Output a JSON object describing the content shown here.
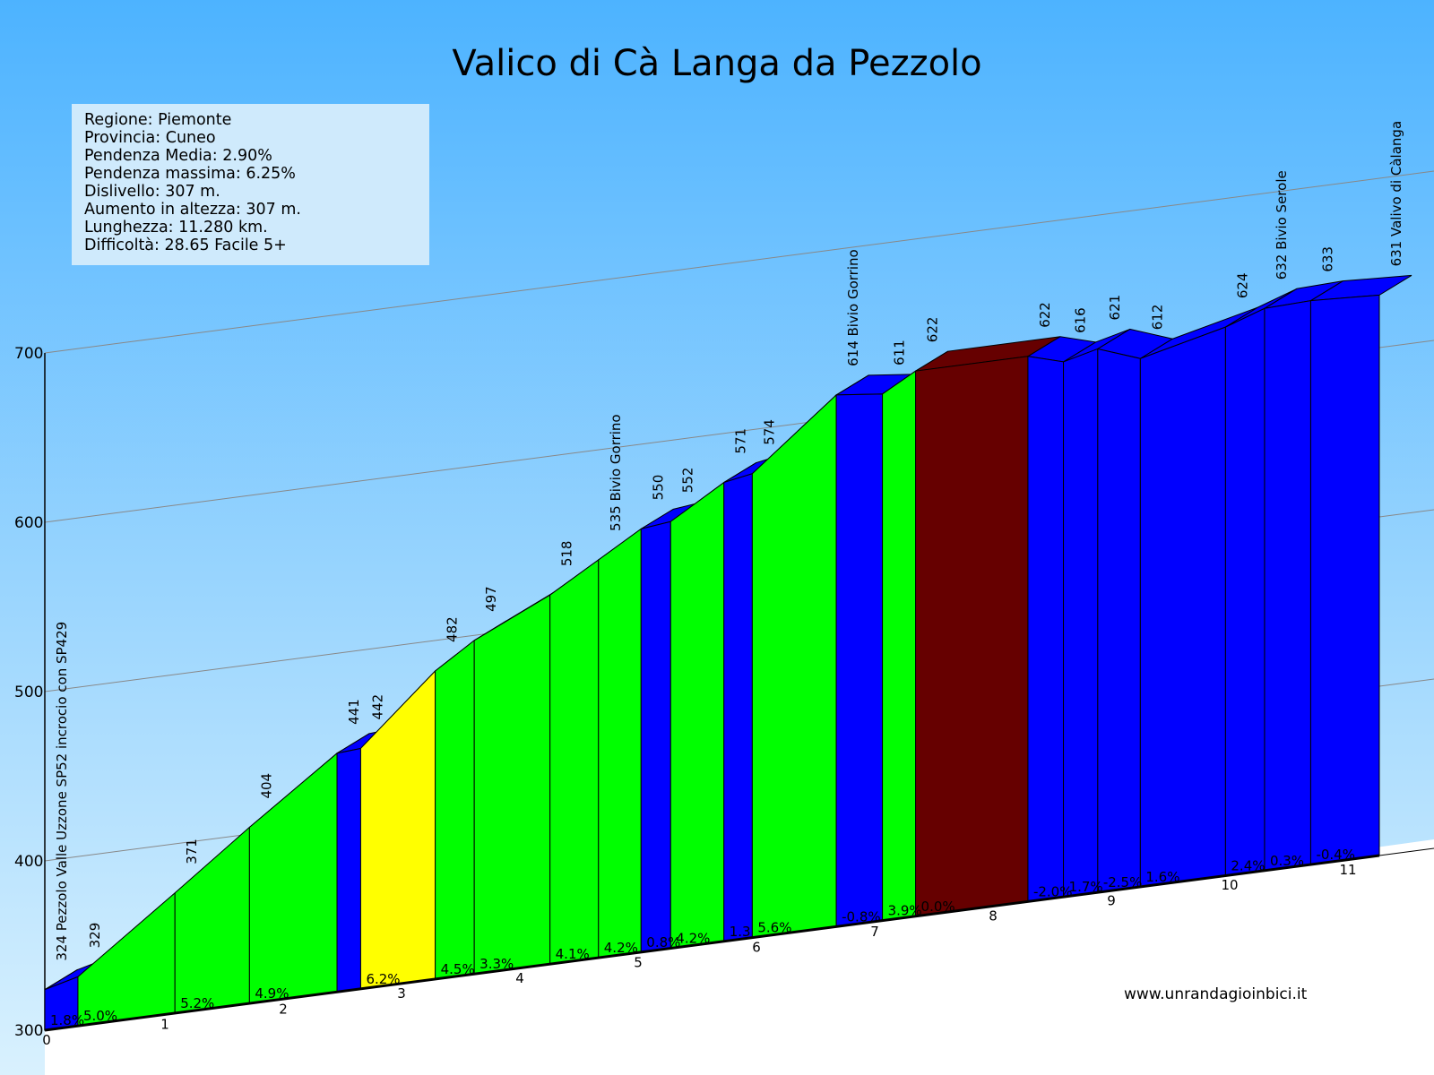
{
  "title": "Valico di Cà Langa da Pezzolo",
  "info": {
    "lines": [
      "Regione: Piemonte",
      "Provincia: Cuneo",
      "Pendenza Media: 2.90%",
      "Pendenza massima: 6.25%",
      "Dislivello:  307 m.",
      "Aumento in altezza:  307 m.",
      "Lunghezza:  11.280 km.",
      "Difficoltà: 28.65 Facile 5+"
    ]
  },
  "website": "www.unrandagioinbici.it",
  "colors": {
    "sky_top": "#4db3ff",
    "sky_bottom": "#d9f1fe",
    "blue": "#0000ff",
    "green": "#00ff00",
    "yellow": "#ffff00",
    "brown": "#660000",
    "info_bg": "#cfeafc"
  },
  "chart_data": {
    "type": "area",
    "x_unit": "km",
    "y_unit": "m",
    "xlim": [
      0,
      11.28
    ],
    "ylim": [
      300,
      700
    ],
    "y_ticks": [
      "300",
      "400",
      "500",
      "600",
      "700"
    ],
    "x_ticks": [
      "0",
      "1",
      "2",
      "3",
      "4",
      "5",
      "6",
      "7",
      "8",
      "9",
      "10",
      "11"
    ],
    "points": [
      {
        "km": 0.0,
        "alt": 324,
        "label": "324 Pezzolo Valle Uzzone SP52 incrocio con SP429"
      },
      {
        "km": 0.28,
        "alt": 329,
        "label": "329"
      },
      {
        "km": 1.1,
        "alt": 371,
        "label": "371"
      },
      {
        "km": 1.73,
        "alt": 404,
        "label": "404"
      },
      {
        "km": 2.47,
        "alt": 441,
        "label": "441"
      },
      {
        "km": 2.67,
        "alt": 442,
        "label": "442"
      },
      {
        "km": 3.3,
        "alt": 482,
        "label": "482"
      },
      {
        "km": 3.63,
        "alt": 497,
        "label": "497"
      },
      {
        "km": 4.27,
        "alt": 518,
        "label": "518"
      },
      {
        "km": 4.68,
        "alt": 535,
        "label": "535 Bivio Gorrino"
      },
      {
        "km": 5.04,
        "alt": 550,
        "label": "550"
      },
      {
        "km": 5.29,
        "alt": 552,
        "label": "552"
      },
      {
        "km": 5.74,
        "alt": 571,
        "label": "571"
      },
      {
        "km": 5.98,
        "alt": 574,
        "label": "574"
      },
      {
        "km": 6.69,
        "alt": 614,
        "label": "614 Bivio Gorrino"
      },
      {
        "km": 7.08,
        "alt": 611,
        "label": "611"
      },
      {
        "km": 7.36,
        "alt": 622,
        "label": "622"
      },
      {
        "km": 8.31,
        "alt": 622,
        "label": "622"
      },
      {
        "km": 8.61,
        "alt": 616,
        "label": "616"
      },
      {
        "km": 8.9,
        "alt": 621,
        "label": "621"
      },
      {
        "km": 9.26,
        "alt": 612,
        "label": "612"
      },
      {
        "km": 9.98,
        "alt": 624,
        "label": "624"
      },
      {
        "km": 10.31,
        "alt": 632,
        "label": "632 Bivio Serole"
      },
      {
        "km": 10.7,
        "alt": 633,
        "label": "633"
      },
      {
        "km": 11.28,
        "alt": 631,
        "label": "631 Valivo di Càlanga"
      }
    ],
    "segments": [
      {
        "from": 0.0,
        "to": 0.28,
        "grade": "1.8%",
        "color": "blue"
      },
      {
        "from": 0.28,
        "to": 1.1,
        "grade": "5.0%",
        "color": "green"
      },
      {
        "from": 1.1,
        "to": 1.73,
        "grade": "5.2%",
        "color": "green"
      },
      {
        "from": 1.73,
        "to": 2.47,
        "grade": "4.9%",
        "color": "green"
      },
      {
        "from": 2.47,
        "to": 2.67,
        "grade": "",
        "color": "blue"
      },
      {
        "from": 2.67,
        "to": 3.3,
        "grade": "6.2%",
        "color": "yellow"
      },
      {
        "from": 3.3,
        "to": 3.63,
        "grade": "4.5%",
        "color": "green"
      },
      {
        "from": 3.63,
        "to": 4.27,
        "grade": "3.3%",
        "color": "green"
      },
      {
        "from": 4.27,
        "to": 4.68,
        "grade": "4.1%",
        "color": "green"
      },
      {
        "from": 4.68,
        "to": 5.04,
        "grade": "4.2%",
        "color": "green"
      },
      {
        "from": 5.04,
        "to": 5.29,
        "grade": "0.8%",
        "color": "blue"
      },
      {
        "from": 5.29,
        "to": 5.74,
        "grade": "4.2%",
        "color": "green"
      },
      {
        "from": 5.74,
        "to": 5.98,
        "grade": "1.3",
        "color": "blue"
      },
      {
        "from": 5.98,
        "to": 6.69,
        "grade": "5.6%",
        "color": "green"
      },
      {
        "from": 6.69,
        "to": 7.08,
        "grade": "-0.8%",
        "color": "blue"
      },
      {
        "from": 7.08,
        "to": 7.36,
        "grade": "3.9%",
        "color": "green"
      },
      {
        "from": 7.36,
        "to": 8.31,
        "grade": "0.0%",
        "color": "brown"
      },
      {
        "from": 8.31,
        "to": 8.61,
        "grade": "-2.0%",
        "color": "blue"
      },
      {
        "from": 8.61,
        "to": 8.9,
        "grade": "1.7%",
        "color": "blue"
      },
      {
        "from": 8.9,
        "to": 9.26,
        "grade": "-2.5%",
        "color": "blue"
      },
      {
        "from": 9.26,
        "to": 9.98,
        "grade": "1.6%",
        "color": "blue"
      },
      {
        "from": 9.98,
        "to": 10.31,
        "grade": "2.4%",
        "color": "blue"
      },
      {
        "from": 10.31,
        "to": 10.7,
        "grade": "0.3%",
        "color": "blue"
      },
      {
        "from": 10.7,
        "to": 11.28,
        "grade": "-0.4%",
        "color": "blue"
      }
    ]
  }
}
